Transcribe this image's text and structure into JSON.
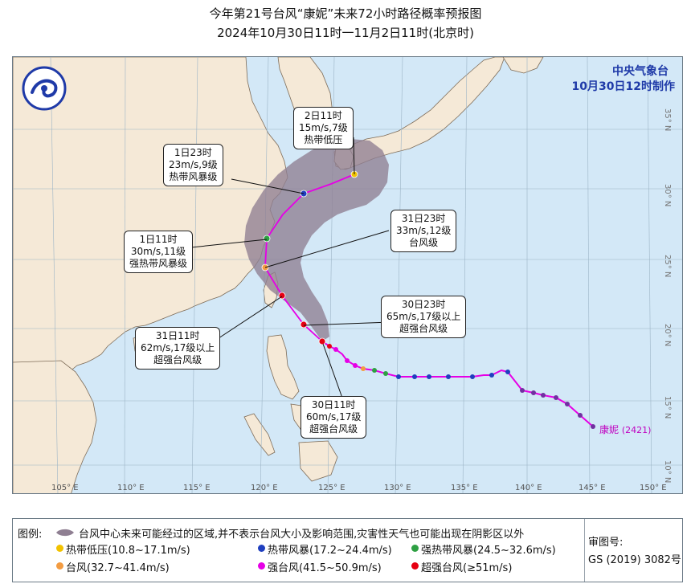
{
  "header": {
    "title": "今年第21号台风“康妮”未来72小时路径概率预报图",
    "subtitle": "2024年10月30日11时一11月2日11时(北京时)"
  },
  "agency": {
    "name": "中央气象台",
    "issued": "10月30日12时制作"
  },
  "map": {
    "lon_labels": [
      "105° E",
      "110° E",
      "115° E",
      "120° E",
      "125° E",
      "130° E",
      "135° E",
      "140° E",
      "145° E",
      "150° E"
    ],
    "lat_labels": [
      "10° N",
      "15° N",
      "20° N",
      "25° N",
      "30° N",
      "35° N"
    ],
    "land_color": "#f5e9d7",
    "sea_color": "#d3e8f7",
    "swath_color": "#8f7f92",
    "track_color": "#e600e6"
  },
  "storm": {
    "name": "康妮",
    "code": "(2421)"
  },
  "forecast_points": [
    {
      "id": "t30-11",
      "lines": [
        "30日11时",
        "60m/s,17级",
        "超强台风级"
      ],
      "color": "#e60012",
      "category": "super-typhoon"
    },
    {
      "id": "t30-23",
      "lines": [
        "30日23时",
        "65m/s,17级以上",
        "超强台风级"
      ],
      "color": "#e60012",
      "category": "super-typhoon"
    },
    {
      "id": "t31-11",
      "lines": [
        "31日11时",
        "62m/s,17级以上",
        "超强台风级"
      ],
      "color": "#e60012",
      "category": "super-typhoon"
    },
    {
      "id": "t31-23",
      "lines": [
        "31日23时",
        "33m/s,12级",
        "台风级"
      ],
      "color": "#f39c42",
      "category": "typhoon"
    },
    {
      "id": "t1-11",
      "lines": [
        "1日11时",
        "30m/s,11级",
        "强热带风暴级"
      ],
      "color": "#2ea043",
      "category": "severe-tropical-storm"
    },
    {
      "id": "t1-23",
      "lines": [
        "1日23时",
        "23m/s,9级",
        "热带风暴级"
      ],
      "color": "#1f3fbf",
      "category": "tropical-storm"
    },
    {
      "id": "t2-11",
      "lines": [
        "2日11时",
        "15m/s,7级",
        "热带低压"
      ],
      "color": "#f2c200",
      "category": "tropical-depression"
    }
  ],
  "legend": {
    "title": "图例:",
    "swath_text": "台风中心未来可能经过的区域,并不表示台风大小及影响范围,灾害性天气也可能出现在阴影区以外",
    "items": [
      {
        "label": "热带低压(10.8~17.1m/s)",
        "color": "#f2c200"
      },
      {
        "label": "热带风暴(17.2~24.4m/s)",
        "color": "#1f3fbf"
      },
      {
        "label": "强热带风暴(24.5~32.6m/s)",
        "color": "#2ea043"
      },
      {
        "label": "台风(32.7~41.4m/s)",
        "color": "#f39c42"
      },
      {
        "label": "强台风(41.5~50.9m/s)",
        "color": "#e600e6"
      },
      {
        "label": "超强台风(≥51m/s)",
        "color": "#e60012"
      }
    ],
    "approval_label": "审图号:",
    "approval_number": "GS (2019) 3082号"
  }
}
